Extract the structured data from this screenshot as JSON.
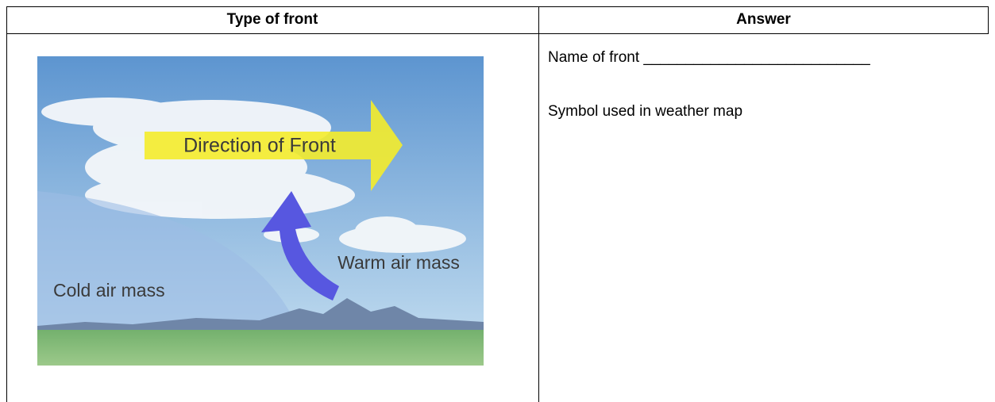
{
  "table": {
    "headers": [
      "Type of front",
      "Answer"
    ],
    "image": {
      "labels": [
        "Direction of Front",
        "Warm air mass",
        "Cold air mass"
      ]
    },
    "answer_lines": [
      "Name of front ___________________________",
      "Symbol used in weather map"
    ]
  }
}
